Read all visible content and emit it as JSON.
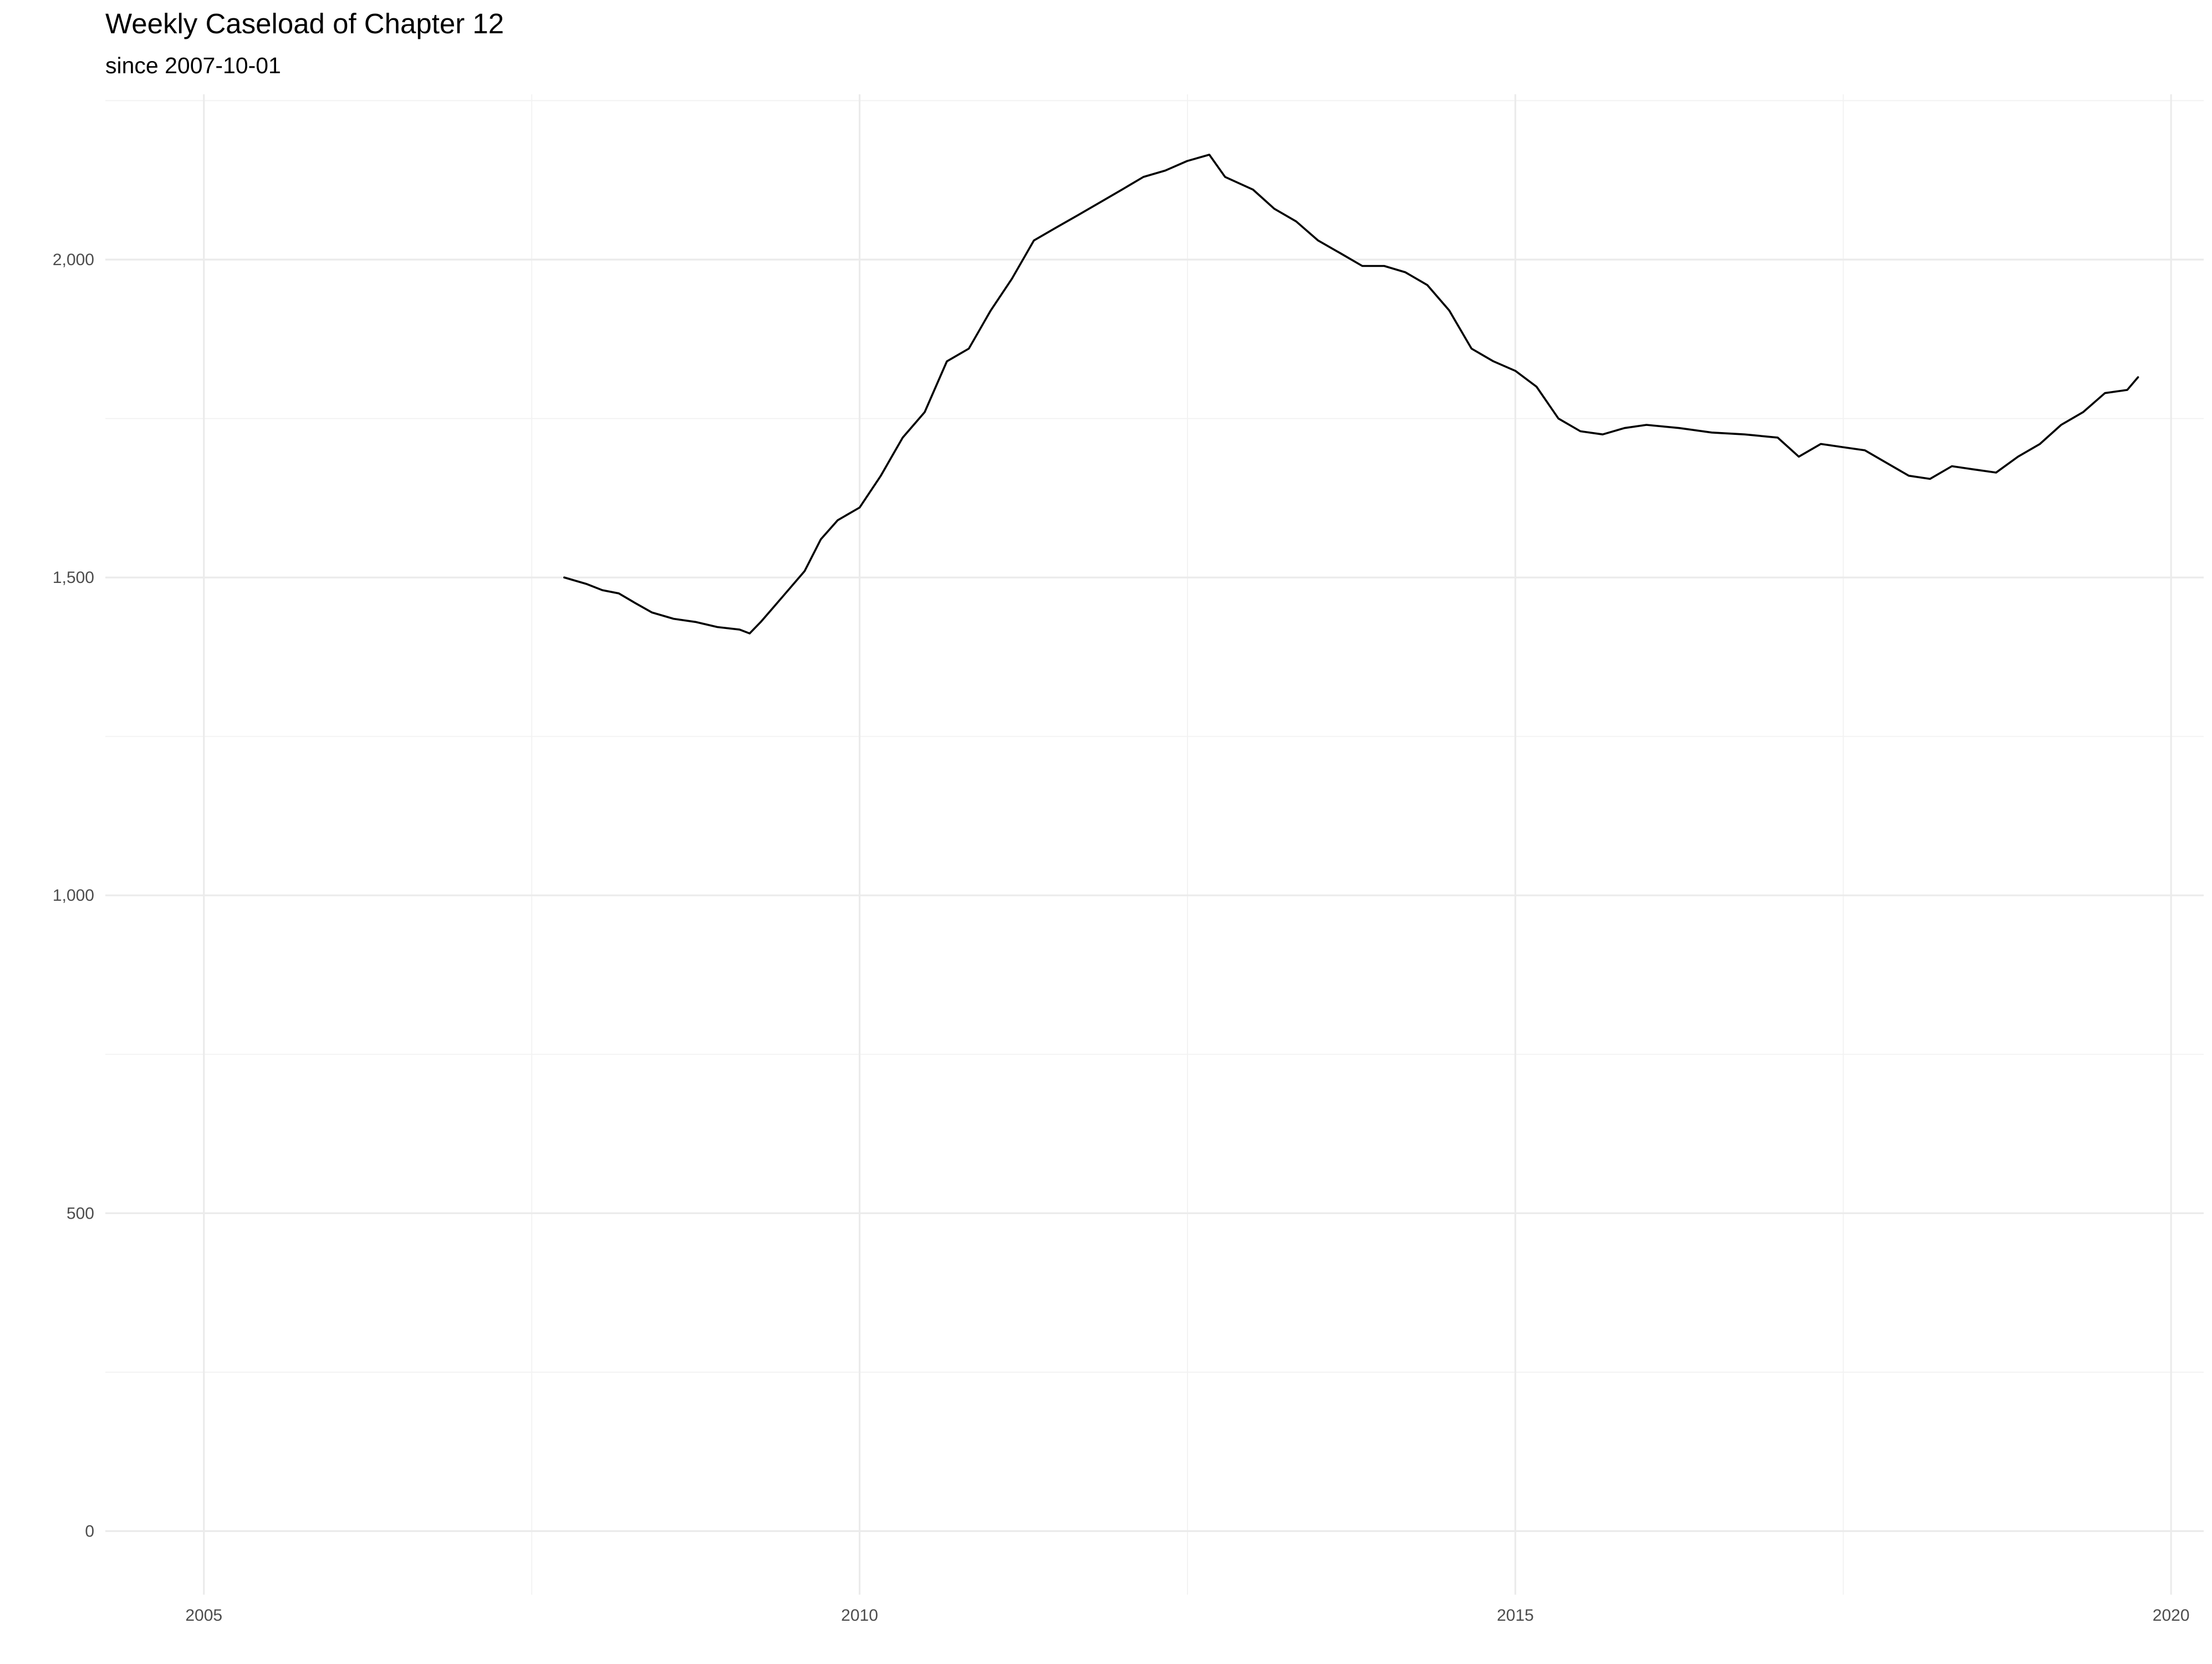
{
  "chart_data": {
    "type": "line",
    "title": "Weekly Caseload of Chapter 12",
    "subtitle": "since 2007-10-01",
    "xlabel": "",
    "ylabel": "",
    "x_ticks": [
      "2005",
      "2010",
      "2015",
      "2020"
    ],
    "y_ticks": [
      "0",
      "500",
      "1,000",
      "1,500",
      "2,000"
    ],
    "xlim": [
      "2004-04-01",
      "2020-04-01"
    ],
    "ylim": [
      -100,
      2260
    ],
    "grid": true,
    "legend": "none",
    "line_color": "#000000",
    "series": [
      {
        "x": [
          "2007-10-01",
          "2007-12-01",
          "2008-01-15",
          "2008-03-01",
          "2008-04-15",
          "2008-06-01",
          "2008-08-01",
          "2008-10-01",
          "2008-12-01",
          "2009-02-01",
          "2009-03-01",
          "2009-04-01",
          "2009-06-01",
          "2009-08-01",
          "2009-09-15",
          "2009-11-01",
          "2010-01-01",
          "2010-03-01",
          "2010-05-01",
          "2010-07-01",
          "2010-09-01",
          "2010-11-01",
          "2011-01-01",
          "2011-03-01",
          "2011-05-01",
          "2011-07-01",
          "2011-09-01",
          "2011-11-01",
          "2012-01-01",
          "2012-03-01",
          "2012-05-01",
          "2012-07-01",
          "2012-09-01",
          "2012-10-15",
          "2013-01-01",
          "2013-03-01",
          "2013-05-01",
          "2013-07-01",
          "2013-09-01",
          "2013-11-01",
          "2014-01-01",
          "2014-03-01",
          "2014-05-01",
          "2014-07-01",
          "2014-09-01",
          "2014-11-01",
          "2015-01-01",
          "2015-03-01",
          "2015-05-01",
          "2015-07-01",
          "2015-09-01",
          "2015-11-01",
          "2016-01-01",
          "2016-04-01",
          "2016-07-01",
          "2016-10-01",
          "2017-01-01",
          "2017-03-01",
          "2017-05-01",
          "2017-07-01",
          "2017-09-01",
          "2017-11-01",
          "2018-01-01",
          "2018-03-01",
          "2018-05-01",
          "2018-07-01",
          "2018-09-01",
          "2018-11-01",
          "2019-01-01",
          "2019-03-01",
          "2019-05-01",
          "2019-07-01",
          "2019-09-01",
          "2019-10-01"
        ],
        "y": [
          1500,
          1490,
          1480,
          1475,
          1460,
          1445,
          1435,
          1430,
          1422,
          1418,
          1412,
          1430,
          1470,
          1510,
          1560,
          1590,
          1610,
          1660,
          1720,
          1760,
          1840,
          1860,
          1920,
          1970,
          2030,
          2050,
          2070,
          2090,
          2110,
          2130,
          2140,
          2155,
          2165,
          2130,
          2110,
          2080,
          2060,
          2030,
          2010,
          1990,
          1990,
          1980,
          1960,
          1920,
          1860,
          1840,
          1825,
          1800,
          1750,
          1730,
          1725,
          1735,
          1740,
          1735,
          1728,
          1725,
          1720,
          1690,
          1710,
          1705,
          1700,
          1680,
          1660,
          1655,
          1675,
          1670,
          1665,
          1690,
          1710,
          1740,
          1760,
          1790,
          1795,
          1815
        ]
      }
    ]
  }
}
